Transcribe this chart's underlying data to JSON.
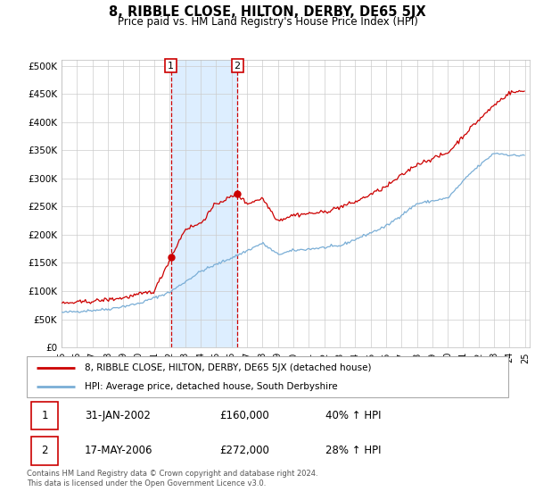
{
  "title": "8, RIBBLE CLOSE, HILTON, DERBY, DE65 5JX",
  "subtitle": "Price paid vs. HM Land Registry's House Price Index (HPI)",
  "yticks": [
    0,
    50000,
    100000,
    150000,
    200000,
    250000,
    300000,
    350000,
    400000,
    450000,
    500000
  ],
  "ytick_labels": [
    "£0",
    "£50K",
    "£100K",
    "£150K",
    "£200K",
    "£250K",
    "£300K",
    "£350K",
    "£400K",
    "£450K",
    "£500K"
  ],
  "year_start": 1995,
  "year_end": 2025,
  "hpi_color": "#7aaed6",
  "price_color": "#cc0000",
  "sale1_date": 2002.08,
  "sale1_price": 160000,
  "sale2_date": 2006.38,
  "sale2_price": 272000,
  "legend_label_price": "8, RIBBLE CLOSE, HILTON, DERBY, DE65 5JX (detached house)",
  "legend_label_hpi": "HPI: Average price, detached house, South Derbyshire",
  "footer": "Contains HM Land Registry data © Crown copyright and database right 2024.\nThis data is licensed under the Open Government Licence v3.0.",
  "table_rows": [
    {
      "num": "1",
      "date": "31-JAN-2002",
      "price": "£160,000",
      "change": "40% ↑ HPI"
    },
    {
      "num": "2",
      "date": "17-MAY-2006",
      "price": "£272,000",
      "change": "28% ↑ HPI"
    }
  ],
  "grid_color": "#cccccc",
  "shade_color": "#ddeeff",
  "hpi_anchors_x": [
    1995.0,
    1998.0,
    2000.0,
    2002.0,
    2004.0,
    2006.5,
    2008.0,
    2009.0,
    2010.0,
    2013.0,
    2016.0,
    2018.0,
    2020.0,
    2021.5,
    2023.0,
    2024.5,
    2025.0
  ],
  "hpi_anchors_y": [
    62000,
    68000,
    78000,
    98000,
    135000,
    165000,
    185000,
    165000,
    172000,
    180000,
    215000,
    255000,
    265000,
    310000,
    345000,
    340000,
    342000
  ],
  "price_anchors_x": [
    1995.0,
    1997.0,
    1999.0,
    2001.0,
    2002.08,
    2003.0,
    2004.0,
    2005.0,
    2006.38,
    2007.0,
    2008.0,
    2009.0,
    2010.0,
    2012.0,
    2014.0,
    2016.0,
    2018.0,
    2020.0,
    2021.5,
    2023.0,
    2024.0,
    2025.0
  ],
  "price_anchors_y": [
    78000,
    82000,
    88000,
    100000,
    160000,
    210000,
    220000,
    255000,
    272000,
    255000,
    265000,
    225000,
    235000,
    240000,
    258000,
    285000,
    325000,
    345000,
    390000,
    430000,
    452000,
    455000
  ]
}
